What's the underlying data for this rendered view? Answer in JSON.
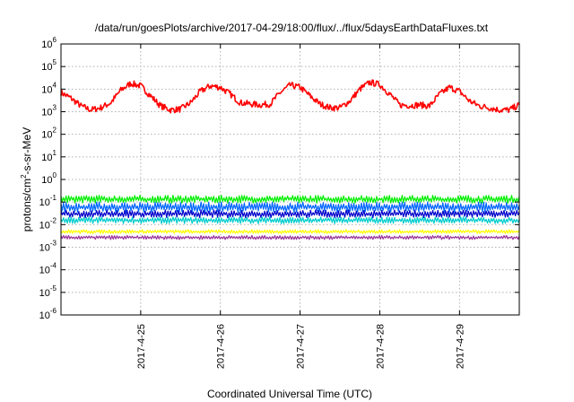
{
  "chart_data": {
    "type": "line",
    "title": "/data/run/goesPlots/archive/2017-04-29/18:00/flux/../flux/5daysEarthDataFluxes.txt",
    "xlabel": "Coordinated Universal Time (UTC)",
    "ylabel_parts": [
      "protons/cm",
      "2",
      "-s-sr-MeV"
    ],
    "yscale": "log",
    "ylim": [
      1e-06,
      1000000.0
    ],
    "xlim": [
      "2017-04-24T00:00",
      "2017-04-29T18:00"
    ],
    "xticks": [
      {
        "x": "2017-04-25",
        "label": "2017-4-25"
      },
      {
        "x": "2017-04-26",
        "label": "2017-4-26"
      },
      {
        "x": "2017-04-27",
        "label": "2017-4-27"
      },
      {
        "x": "2017-04-28",
        "label": "2017-4-28"
      },
      {
        "x": "2017-04-29",
        "label": "2017-4-29"
      }
    ],
    "yticks": [
      {
        "value": 1e-06,
        "base": "10",
        "exp": "-6"
      },
      {
        "value": 1e-05,
        "base": "10",
        "exp": "-5"
      },
      {
        "value": 0.0001,
        "base": "10",
        "exp": "-4"
      },
      {
        "value": 0.001,
        "base": "10",
        "exp": "-3"
      },
      {
        "value": 0.01,
        "base": "10",
        "exp": "-2"
      },
      {
        "value": 0.1,
        "base": "10",
        "exp": "-1"
      },
      {
        "value": 1.0,
        "base": "10",
        "exp": "0"
      },
      {
        "value": 10.0,
        "base": "10",
        "exp": "1"
      },
      {
        "value": 100.0,
        "base": "10",
        "exp": "2"
      },
      {
        "value": 1000.0,
        "base": "10",
        "exp": "3"
      },
      {
        "value": 10000.0,
        "base": "10",
        "exp": "4"
      },
      {
        "value": 100000.0,
        "base": "10",
        "exp": "5"
      },
      {
        "value": 1000000.0,
        "base": "10",
        "exp": "6"
      }
    ],
    "grid": true,
    "legend": "none",
    "series": [
      {
        "color": "#ff0000",
        "points": [
          [
            "2017-04-24T00:00",
            7000
          ],
          [
            "2017-04-24T03:00",
            4000
          ],
          [
            "2017-04-24T06:00",
            1800
          ],
          [
            "2017-04-24T09:00",
            1200
          ],
          [
            "2017-04-24T12:00",
            1500
          ],
          [
            "2017-04-24T15:00",
            2500
          ],
          [
            "2017-04-24T18:00",
            9000
          ],
          [
            "2017-04-24T21:00",
            18000
          ],
          [
            "2017-04-25T00:00",
            14000
          ],
          [
            "2017-04-25T03:00",
            5000
          ],
          [
            "2017-04-25T06:00",
            1800
          ],
          [
            "2017-04-25T09:00",
            1200
          ],
          [
            "2017-04-25T12:00",
            1300
          ],
          [
            "2017-04-25T15:00",
            2500
          ],
          [
            "2017-04-25T18:00",
            8000
          ],
          [
            "2017-04-25T21:00",
            14000
          ],
          [
            "2017-04-26T00:00",
            12000
          ],
          [
            "2017-04-26T03:00",
            6000
          ],
          [
            "2017-04-26T06:00",
            2500
          ],
          [
            "2017-04-26T09:00",
            2200
          ],
          [
            "2017-04-26T12:00",
            2000
          ],
          [
            "2017-04-26T15:00",
            2200
          ],
          [
            "2017-04-26T18:00",
            7000
          ],
          [
            "2017-04-26T21:00",
            15000
          ],
          [
            "2017-04-27T00:00",
            12000
          ],
          [
            "2017-04-27T03:00",
            5000
          ],
          [
            "2017-04-27T06:00",
            2200
          ],
          [
            "2017-04-27T09:00",
            1500
          ],
          [
            "2017-04-27T12:00",
            1500
          ],
          [
            "2017-04-27T15:00",
            3000
          ],
          [
            "2017-04-27T18:00",
            10000
          ],
          [
            "2017-04-27T21:00",
            20000
          ],
          [
            "2017-04-28T00:00",
            16000
          ],
          [
            "2017-04-28T03:00",
            6000
          ],
          [
            "2017-04-28T06:00",
            2000
          ],
          [
            "2017-04-28T09:00",
            1900
          ],
          [
            "2017-04-28T12:00",
            2000
          ],
          [
            "2017-04-28T15:00",
            1800
          ],
          [
            "2017-04-28T18:00",
            6000
          ],
          [
            "2017-04-28T21:00",
            12000
          ],
          [
            "2017-04-29T00:00",
            8000
          ],
          [
            "2017-04-29T03:00",
            3000
          ],
          [
            "2017-04-29T06:00",
            1800
          ],
          [
            "2017-04-29T09:00",
            1500
          ],
          [
            "2017-04-29T12:00",
            1200
          ],
          [
            "2017-04-29T15:00",
            1200
          ],
          [
            "2017-04-29T18:00",
            2000
          ]
        ]
      },
      {
        "color": "#00ee00",
        "band": [
          0.09,
          0.2
        ]
      },
      {
        "color": "#0066ff",
        "band": [
          0.035,
          0.1
        ]
      },
      {
        "color": "#0000cc",
        "band": [
          0.02,
          0.045
        ]
      },
      {
        "color": "#00cccc",
        "band": [
          0.011,
          0.022
        ]
      },
      {
        "color": "#ffff00",
        "band": [
          0.004,
          0.006
        ]
      },
      {
        "color": "#993399",
        "band": [
          0.0022,
          0.0033
        ]
      }
    ]
  }
}
